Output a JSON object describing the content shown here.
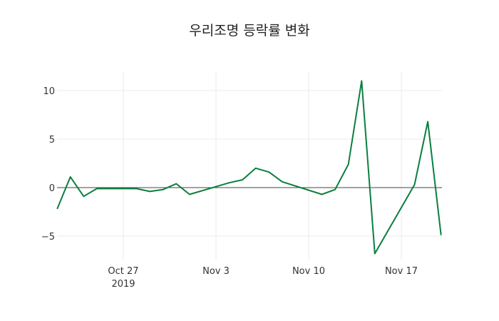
{
  "chart_data": {
    "type": "line",
    "title": "우리조명 등락률 변화",
    "xlabel": "",
    "ylabel": "",
    "ylim": [
      -7.5,
      12
    ],
    "yticks": [
      -5,
      0,
      5,
      10
    ],
    "ytick_labels": [
      "−5",
      "0",
      "5",
      "10"
    ],
    "xticks": [
      "Oct 27\n2019",
      "Nov 3",
      "Nov 10",
      "Nov 17"
    ],
    "grid": true,
    "legend": false,
    "line_color": "#0a7f3f",
    "series": [
      {
        "name": "등락률",
        "x": [
          "2019-10-22",
          "2019-10-23",
          "2019-10-24",
          "2019-10-25",
          "2019-10-28",
          "2019-10-29",
          "2019-10-30",
          "2019-10-31",
          "2019-11-01",
          "2019-11-04",
          "2019-11-05",
          "2019-11-06",
          "2019-11-07",
          "2019-11-08",
          "2019-11-11",
          "2019-11-12",
          "2019-11-13",
          "2019-11-14",
          "2019-11-15",
          "2019-11-18",
          "2019-11-19",
          "2019-11-20"
        ],
        "values": [
          -2.2,
          1.1,
          -0.9,
          -0.1,
          -0.1,
          -0.4,
          -0.2,
          0.4,
          -0.7,
          0.5,
          0.8,
          2.0,
          1.6,
          0.6,
          -0.7,
          -0.2,
          2.4,
          11.0,
          -6.8,
          0.3,
          6.8,
          -4.9
        ]
      }
    ]
  }
}
